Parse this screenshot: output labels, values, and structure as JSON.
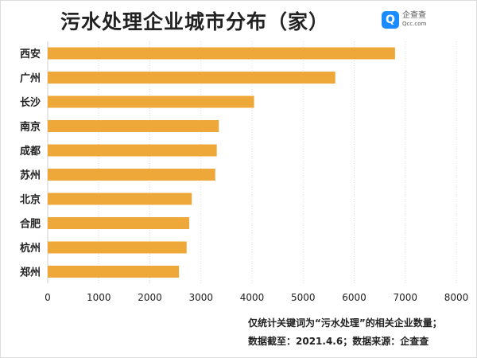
{
  "title": "污水处理企业城市分布（家）",
  "logo": {
    "name": "企查查",
    "domain": "Qcc.com"
  },
  "notes": [
    "仅统计关键词为“污水处理”的相关企业数量；",
    "数据截至：2021.4.6；数据来源：企查查"
  ],
  "chart_data": {
    "type": "bar",
    "orientation": "horizontal",
    "title": "污水处理企业城市分布（家）",
    "categories": [
      "西安",
      "广州",
      "长沙",
      "南京",
      "成都",
      "苏州",
      "北京",
      "合肥",
      "杭州",
      "郑州"
    ],
    "values": [
      6800,
      5630,
      4040,
      3350,
      3310,
      3280,
      2820,
      2770,
      2720,
      2570
    ],
    "xlim": [
      0,
      8000
    ],
    "xticks": [
      "0",
      "1000",
      "2000",
      "3000",
      "4000",
      "5000",
      "6000",
      "7000",
      "8000"
    ],
    "grid": "vertical dotted",
    "bar_color": "#EEA83A"
  }
}
